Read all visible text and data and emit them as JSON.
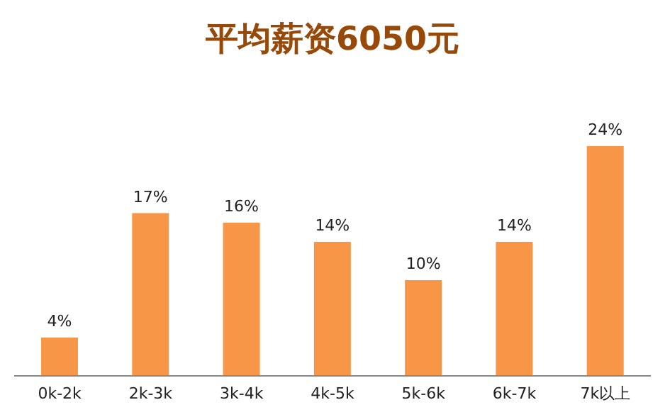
{
  "chart_data": {
    "type": "bar",
    "title": "平均薪资6050元",
    "categories": [
      "0k-2k",
      "2k-3k",
      "3k-4k",
      "4k-5k",
      "5k-6k",
      "6k-7k",
      "7k以上"
    ],
    "values": [
      4,
      17,
      16,
      14,
      10,
      14,
      24
    ],
    "value_labels": [
      "4%",
      "17%",
      "16%",
      "14%",
      "10%",
      "14%",
      "24%"
    ],
    "color": "#f79646"
  }
}
